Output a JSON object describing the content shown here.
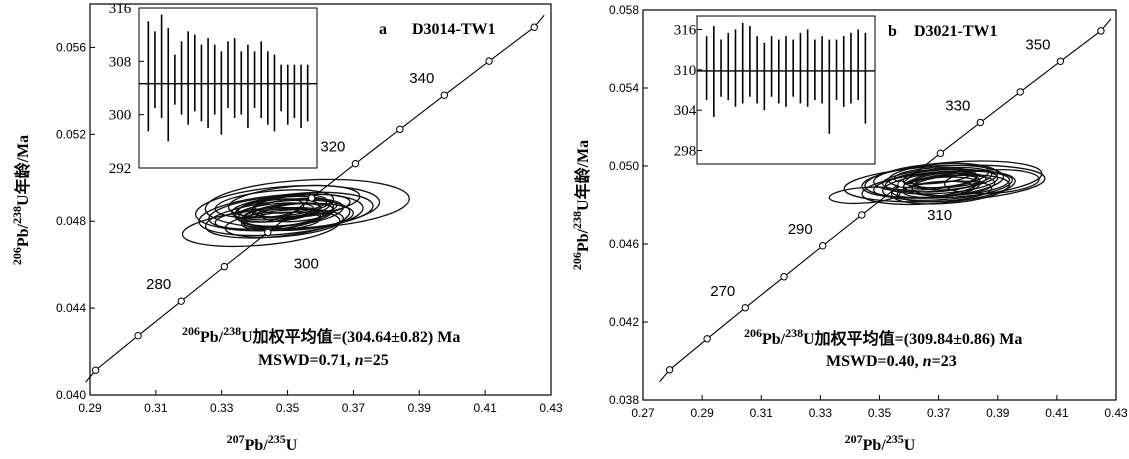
{
  "chart_data": [
    {
      "type": "concordia",
      "panel": "a",
      "sample": "D3014-TW1",
      "xlabel_iso": "207",
      "xlabel_el": "Pb",
      "xlabel_sep": "/",
      "xlabel_iso2": "235",
      "xlabel_el2": "U",
      "ylabel_iso": "206",
      "ylabel_el": "Pb",
      "ylabel_sep": "/",
      "ylabel_iso2": "238",
      "ylabel_rest": "U年龄/Ma",
      "xlim": [
        0.29,
        0.43
      ],
      "ylim": [
        0.04,
        0.058
      ],
      "xticks": [
        "0.29",
        "0.31",
        "0.33",
        "0.35",
        "0.37",
        "0.39",
        "0.41",
        "0.43"
      ],
      "yticks": [
        "0.040",
        "0.044",
        "0.048",
        "0.052",
        "0.056"
      ],
      "concordia_points": [
        {
          "x": 0.2917,
          "y": 0.04114
        },
        {
          "x": 0.3046,
          "y": 0.04273
        },
        {
          "x": 0.3177,
          "y": 0.04432
        },
        {
          "x": 0.3308,
          "y": 0.04591
        },
        {
          "x": 0.344,
          "y": 0.04749
        },
        {
          "x": 0.3573,
          "y": 0.04907
        },
        {
          "x": 0.3706,
          "y": 0.05065
        },
        {
          "x": 0.3841,
          "y": 0.05223
        },
        {
          "x": 0.3976,
          "y": 0.0538
        },
        {
          "x": 0.4112,
          "y": 0.05537
        },
        {
          "x": 0.4249,
          "y": 0.05693
        }
      ],
      "age_labels": [
        {
          "text": "280",
          "x": 0.3177,
          "y": 0.04432,
          "place": "left"
        },
        {
          "text": "300",
          "x": 0.344,
          "y": 0.04749,
          "place": "below"
        },
        {
          "text": "320",
          "x": 0.3706,
          "y": 0.05065,
          "place": "left"
        },
        {
          "text": "340",
          "x": 0.3976,
          "y": 0.0538,
          "place": "left"
        }
      ],
      "ellipses": [
        {
          "x": 0.356,
          "y": 0.0488,
          "a": 0.031,
          "b": 0.0011,
          "tilt": 3
        },
        {
          "x": 0.35,
          "y": 0.0486,
          "a": 0.028,
          "b": 0.001,
          "tilt": 4
        },
        {
          "x": 0.348,
          "y": 0.0483,
          "a": 0.025,
          "b": 0.0009,
          "tilt": 5
        },
        {
          "x": 0.347,
          "y": 0.0481,
          "a": 0.022,
          "b": 0.0008,
          "tilt": 6
        },
        {
          "x": 0.342,
          "y": 0.0477,
          "a": 0.024,
          "b": 0.0008,
          "tilt": 5
        },
        {
          "x": 0.352,
          "y": 0.0489,
          "a": 0.02,
          "b": 0.0007,
          "tilt": 5
        },
        {
          "x": 0.355,
          "y": 0.0485,
          "a": 0.021,
          "b": 0.0008,
          "tilt": 4
        },
        {
          "x": 0.345,
          "y": 0.0484,
          "a": 0.019,
          "b": 0.0007,
          "tilt": 6
        },
        {
          "x": 0.349,
          "y": 0.0479,
          "a": 0.018,
          "b": 0.0006,
          "tilt": 5
        },
        {
          "x": 0.353,
          "y": 0.0482,
          "a": 0.017,
          "b": 0.0006,
          "tilt": 4
        },
        {
          "x": 0.346,
          "y": 0.0488,
          "a": 0.018,
          "b": 0.0006,
          "tilt": 5
        },
        {
          "x": 0.351,
          "y": 0.0484,
          "a": 0.016,
          "b": 0.0006,
          "tilt": 6
        },
        {
          "x": 0.348,
          "y": 0.0486,
          "a": 0.015,
          "b": 0.0005,
          "tilt": 5
        },
        {
          "x": 0.344,
          "y": 0.0481,
          "a": 0.016,
          "b": 0.0005,
          "tilt": 4
        },
        {
          "x": 0.354,
          "y": 0.0487,
          "a": 0.015,
          "b": 0.0005,
          "tilt": 5
        },
        {
          "x": 0.35,
          "y": 0.0483,
          "a": 0.014,
          "b": 0.0005,
          "tilt": 6
        },
        {
          "x": 0.347,
          "y": 0.0485,
          "a": 0.013,
          "b": 0.0005,
          "tilt": 5
        },
        {
          "x": 0.352,
          "y": 0.0486,
          "a": 0.013,
          "b": 0.0004,
          "tilt": 4
        },
        {
          "x": 0.349,
          "y": 0.0482,
          "a": 0.012,
          "b": 0.0004,
          "tilt": 5
        },
        {
          "x": 0.346,
          "y": 0.0484,
          "a": 0.012,
          "b": 0.0004,
          "tilt": 6
        },
        {
          "x": 0.351,
          "y": 0.0488,
          "a": 0.011,
          "b": 0.0004,
          "tilt": 5
        },
        {
          "x": 0.348,
          "y": 0.048,
          "a": 0.012,
          "b": 0.0004,
          "tilt": 4
        },
        {
          "x": 0.353,
          "y": 0.0484,
          "a": 0.011,
          "b": 0.0004,
          "tilt": 5
        },
        {
          "x": 0.345,
          "y": 0.0486,
          "a": 0.01,
          "b": 0.0004,
          "tilt": 6
        },
        {
          "x": 0.35,
          "y": 0.0485,
          "a": 0.01,
          "b": 0.0003,
          "tilt": 5
        }
      ],
      "inset": {
        "ylim": [
          292,
          316
        ],
        "yticks": [
          "316",
          "308",
          "300",
          "292"
        ],
        "mean": 304.64,
        "bars": [
          {
            "lo": 297.5,
            "hi": 314.0
          },
          {
            "lo": 301.0,
            "hi": 312.5
          },
          {
            "lo": 299.5,
            "hi": 315.0
          },
          {
            "lo": 296.0,
            "hi": 313.0
          },
          {
            "lo": 301.5,
            "hi": 309.0
          },
          {
            "lo": 300.0,
            "hi": 311.0
          },
          {
            "lo": 298.5,
            "hi": 312.5
          },
          {
            "lo": 300.5,
            "hi": 312.0
          },
          {
            "lo": 299.0,
            "hi": 310.5
          },
          {
            "lo": 298.0,
            "hi": 311.5
          },
          {
            "lo": 300.0,
            "hi": 310.5
          },
          {
            "lo": 297.0,
            "hi": 309.5
          },
          {
            "lo": 301.0,
            "hi": 311.0
          },
          {
            "lo": 299.5,
            "hi": 311.5
          },
          {
            "lo": 300.0,
            "hi": 309.5
          },
          {
            "lo": 298.0,
            "hi": 310.5
          },
          {
            "lo": 301.0,
            "hi": 309.5
          },
          {
            "lo": 299.5,
            "hi": 311.0
          },
          {
            "lo": 298.5,
            "hi": 309.5
          },
          {
            "lo": 297.5,
            "hi": 309.0
          },
          {
            "lo": 300.5,
            "hi": 307.5
          },
          {
            "lo": 298.5,
            "hi": 307.5
          },
          {
            "lo": 299.5,
            "hi": 307.5
          },
          {
            "lo": 298.0,
            "hi": 307.5
          },
          {
            "lo": 299.0,
            "hi": 307.5
          }
        ]
      },
      "stats_iso": "206",
      "stats_el": "Pb",
      "stats_sep": "/",
      "stats_iso2": "238",
      "stats_rest": "U加权平均值=(304.64±0.82) Ma",
      "mswd_text": "MSWD=0.71, ",
      "n_label": "n",
      "n_text": "=25"
    },
    {
      "type": "concordia",
      "panel": "b",
      "sample": "D3021-TW1",
      "xlabel_iso": "207",
      "xlabel_el": "Pb",
      "xlabel_sep": "/",
      "xlabel_iso2": "235",
      "xlabel_el2": "U",
      "ylabel_iso": "206",
      "ylabel_el": "Pb",
      "ylabel_sep": "/",
      "ylabel_iso2": "238",
      "ylabel_rest": "U年龄/Ma",
      "xlim": [
        0.27,
        0.43
      ],
      "ylim": [
        0.038,
        0.058
      ],
      "xticks": [
        "0.27",
        "0.29",
        "0.31",
        "0.33",
        "0.35",
        "0.37",
        "0.39",
        "0.41",
        "0.43"
      ],
      "yticks": [
        "0.038",
        "0.042",
        "0.046",
        "0.050",
        "0.054",
        "0.058"
      ],
      "concordia_points": [
        {
          "x": 0.279,
          "y": 0.03955
        },
        {
          "x": 0.2917,
          "y": 0.04114
        },
        {
          "x": 0.3046,
          "y": 0.04273
        },
        {
          "x": 0.3177,
          "y": 0.04432
        },
        {
          "x": 0.3308,
          "y": 0.04591
        },
        {
          "x": 0.344,
          "y": 0.04749
        },
        {
          "x": 0.3573,
          "y": 0.04907
        },
        {
          "x": 0.3706,
          "y": 0.05065
        },
        {
          "x": 0.3841,
          "y": 0.05223
        },
        {
          "x": 0.3976,
          "y": 0.0538
        },
        {
          "x": 0.4112,
          "y": 0.05537
        },
        {
          "x": 0.4249,
          "y": 0.05693
        }
      ],
      "age_labels": [
        {
          "text": "270",
          "x": 0.3046,
          "y": 0.04273,
          "place": "left"
        },
        {
          "text": "290",
          "x": 0.3308,
          "y": 0.04591,
          "place": "left"
        },
        {
          "text": "310",
          "x": 0.3573,
          "y": 0.04907,
          "place": "below"
        },
        {
          "text": "330",
          "x": 0.3841,
          "y": 0.05223,
          "place": "left"
        },
        {
          "text": "350",
          "x": 0.4112,
          "y": 0.05537,
          "place": "left"
        }
      ],
      "ellipses": [
        {
          "x": 0.372,
          "y": 0.0491,
          "a": 0.034,
          "b": 0.0009,
          "tilt": 3
        },
        {
          "x": 0.375,
          "y": 0.0493,
          "a": 0.03,
          "b": 0.0009,
          "tilt": 4
        },
        {
          "x": 0.37,
          "y": 0.0489,
          "a": 0.026,
          "b": 0.0008,
          "tilt": 5
        },
        {
          "x": 0.368,
          "y": 0.0492,
          "a": 0.024,
          "b": 0.0008,
          "tilt": 4
        },
        {
          "x": 0.373,
          "y": 0.049,
          "a": 0.022,
          "b": 0.0007,
          "tilt": 5
        },
        {
          "x": 0.369,
          "y": 0.0494,
          "a": 0.021,
          "b": 0.0007,
          "tilt": 4
        },
        {
          "x": 0.374,
          "y": 0.0488,
          "a": 0.02,
          "b": 0.0007,
          "tilt": 5
        },
        {
          "x": 0.371,
          "y": 0.0492,
          "a": 0.019,
          "b": 0.0006,
          "tilt": 4
        },
        {
          "x": 0.366,
          "y": 0.049,
          "a": 0.018,
          "b": 0.0006,
          "tilt": 5
        },
        {
          "x": 0.376,
          "y": 0.0491,
          "a": 0.018,
          "b": 0.0006,
          "tilt": 4
        },
        {
          "x": 0.37,
          "y": 0.0495,
          "a": 0.017,
          "b": 0.0006,
          "tilt": 5
        },
        {
          "x": 0.372,
          "y": 0.0487,
          "a": 0.016,
          "b": 0.0005,
          "tilt": 4
        },
        {
          "x": 0.367,
          "y": 0.0493,
          "a": 0.016,
          "b": 0.0005,
          "tilt": 5
        },
        {
          "x": 0.373,
          "y": 0.0494,
          "a": 0.015,
          "b": 0.0005,
          "tilt": 4
        },
        {
          "x": 0.369,
          "y": 0.0489,
          "a": 0.015,
          "b": 0.0005,
          "tilt": 5
        },
        {
          "x": 0.375,
          "y": 0.049,
          "a": 0.014,
          "b": 0.0005,
          "tilt": 4
        },
        {
          "x": 0.371,
          "y": 0.0491,
          "a": 0.013,
          "b": 0.0004,
          "tilt": 5
        },
        {
          "x": 0.368,
          "y": 0.0495,
          "a": 0.013,
          "b": 0.0004,
          "tilt": 4
        },
        {
          "x": 0.374,
          "y": 0.0492,
          "a": 0.012,
          "b": 0.0004,
          "tilt": 5
        },
        {
          "x": 0.37,
          "y": 0.0488,
          "a": 0.012,
          "b": 0.0004,
          "tilt": 4
        },
        {
          "x": 0.372,
          "y": 0.0493,
          "a": 0.011,
          "b": 0.0004,
          "tilt": 5
        },
        {
          "x": 0.388,
          "y": 0.0492,
          "a": 0.016,
          "b": 0.0006,
          "tilt": 3
        },
        {
          "x": 0.345,
          "y": 0.0485,
          "a": 0.012,
          "b": 0.0004,
          "tilt": 4
        }
      ],
      "inset": {
        "ylim": [
          296,
          318
        ],
        "yticks": [
          "316",
          "310",
          "304",
          "298"
        ],
        "mean": 309.84,
        "bars": [
          {
            "lo": 305.5,
            "hi": 315.0
          },
          {
            "lo": 303.0,
            "hi": 316.5
          },
          {
            "lo": 306.0,
            "hi": 314.5
          },
          {
            "lo": 305.5,
            "hi": 315.5
          },
          {
            "lo": 304.5,
            "hi": 316.0
          },
          {
            "lo": 305.0,
            "hi": 317.0
          },
          {
            "lo": 306.0,
            "hi": 316.5
          },
          {
            "lo": 305.0,
            "hi": 315.0
          },
          {
            "lo": 304.0,
            "hi": 314.0
          },
          {
            "lo": 306.0,
            "hi": 315.0
          },
          {
            "lo": 305.0,
            "hi": 314.5
          },
          {
            "lo": 304.5,
            "hi": 315.0
          },
          {
            "lo": 306.0,
            "hi": 314.5
          },
          {
            "lo": 305.0,
            "hi": 315.5
          },
          {
            "lo": 304.5,
            "hi": 316.0
          },
          {
            "lo": 305.5,
            "hi": 314.5
          },
          {
            "lo": 305.0,
            "hi": 315.0
          },
          {
            "lo": 300.5,
            "hi": 314.5
          },
          {
            "lo": 305.5,
            "hi": 314.5
          },
          {
            "lo": 304.5,
            "hi": 315.0
          },
          {
            "lo": 305.0,
            "hi": 315.5
          },
          {
            "lo": 305.5,
            "hi": 316.0
          },
          {
            "lo": 302.0,
            "hi": 315.5
          }
        ]
      },
      "stats_iso": "206",
      "stats_el": "Pb",
      "stats_sep": "/",
      "stats_iso2": "238",
      "stats_rest": "U加权平均值=(309.84±0.86) Ma",
      "mswd_text": "MSWD=0.40, ",
      "n_label": "n",
      "n_text": "=23"
    }
  ]
}
